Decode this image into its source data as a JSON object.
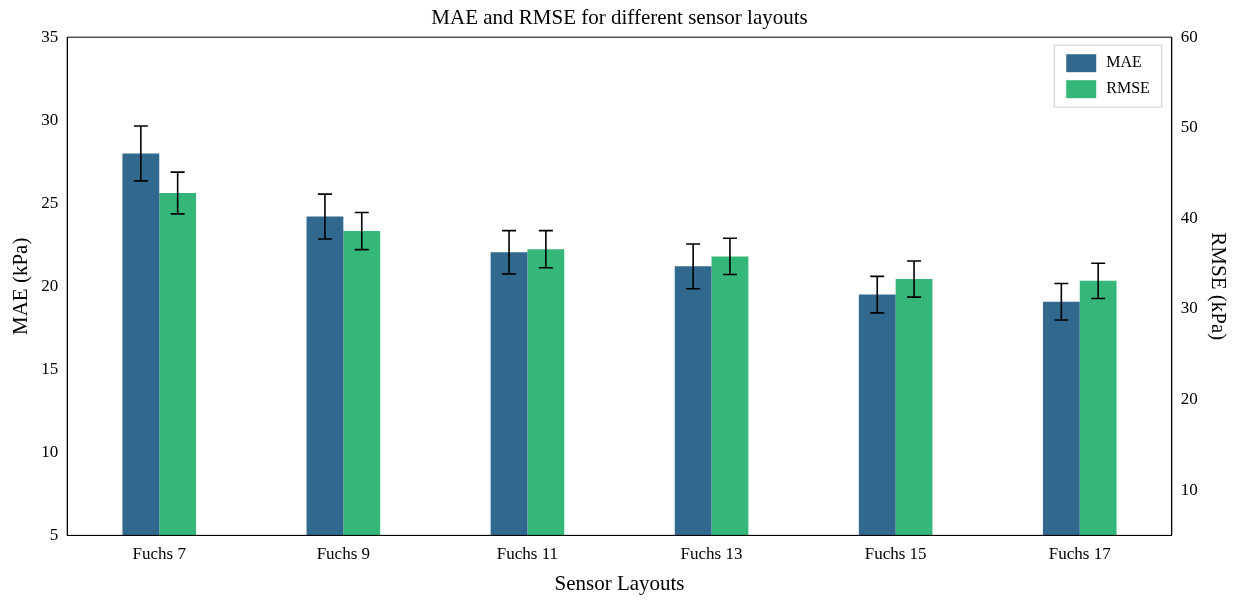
{
  "chart_data": {
    "type": "bar",
    "title": "MAE and RMSE for different sensor layouts",
    "xlabel": "Sensor Layouts",
    "ylabel": "MAE (kPa)",
    "y2label": "RMSE (kPa)",
    "categories": [
      "Fuchs 7",
      "Fuchs 9",
      "Fuchs 11",
      "Fuchs 13",
      "Fuchs 15",
      "Fuchs 17"
    ],
    "series": [
      {
        "name": "MAE",
        "color": "#31688e",
        "values": [
          28.0,
          24.2,
          22.05,
          21.2,
          19.5,
          19.07
        ],
        "errors": [
          1.65,
          1.35,
          1.3,
          1.35,
          1.1,
          1.1
        ]
      },
      {
        "name": "RMSE",
        "color": "#35b779",
        "axis": "y2",
        "values": [
          42.8,
          38.6,
          36.6,
          35.8,
          33.3,
          33.1
        ],
        "errors": [
          2.3,
          2.05,
          2.05,
          2.0,
          2.0,
          1.95
        ]
      }
    ],
    "ylim": [
      5,
      35
    ],
    "yticks": [
      5,
      10,
      15,
      20,
      25,
      30,
      35
    ],
    "y2lim": [
      5,
      60
    ],
    "y2ticks": [
      10,
      20,
      30,
      40,
      50,
      60
    ],
    "legend": "top right"
  }
}
